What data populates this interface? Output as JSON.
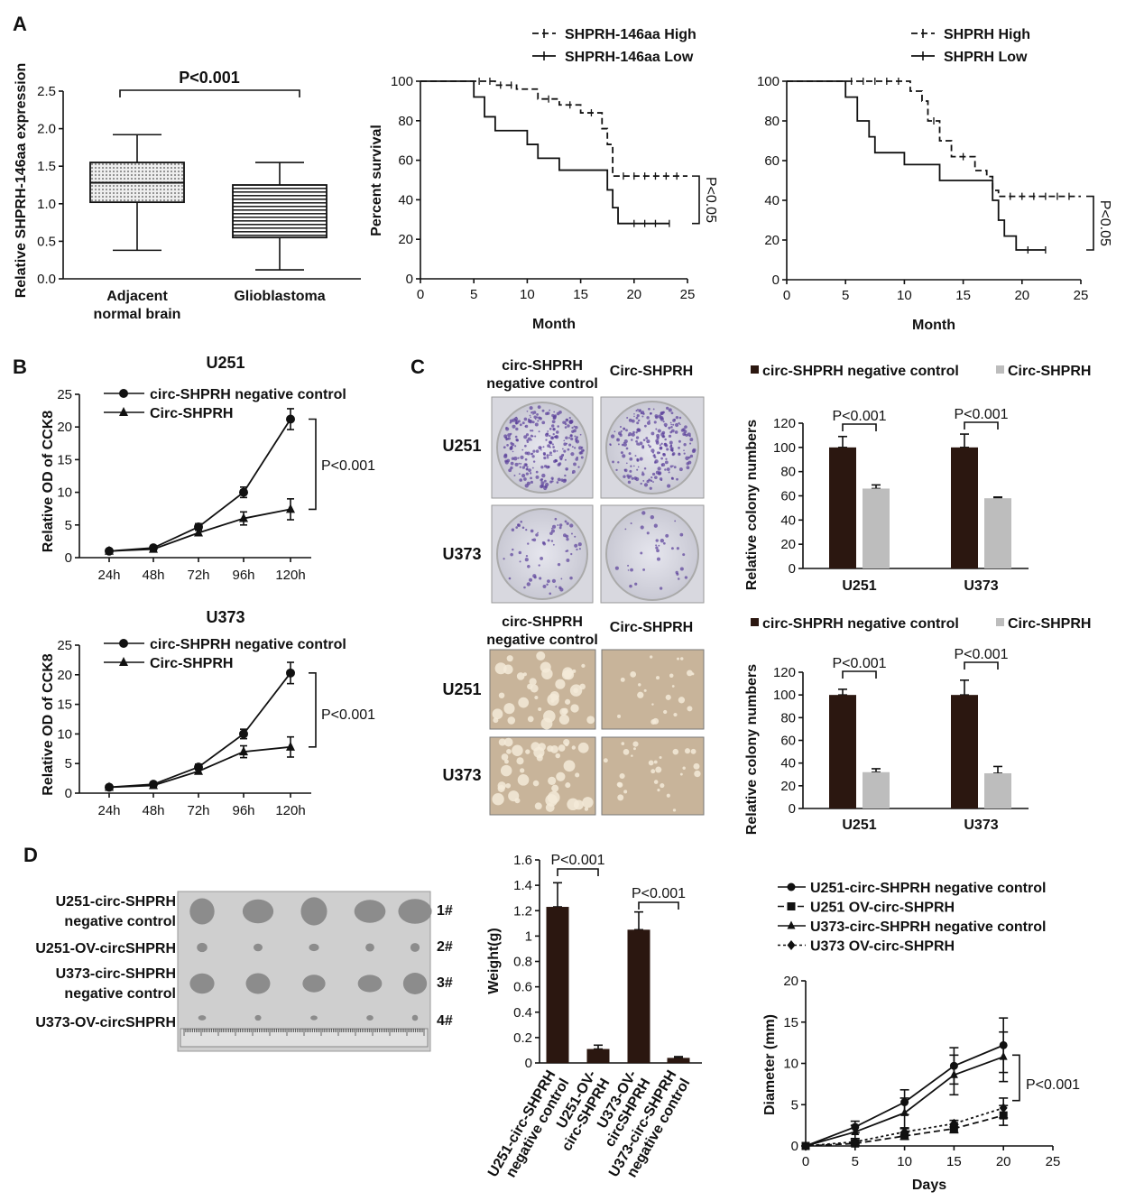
{
  "panels": {
    "A": "A",
    "B": "B",
    "C": "C",
    "D": "D"
  },
  "colors": {
    "dark_bar": "#2b1710",
    "light_bar": "#bdbdbd",
    "line": "#111111",
    "colony_stain": "#5a3f9a",
    "soft_agar": "#c8b49a"
  },
  "chart_data": [
    {
      "id": "box",
      "type": "box",
      "ylabel": "Relative SHPRH-146aa expression",
      "ylim": [
        0,
        2.5
      ],
      "yticks": [
        0,
        0.5,
        1,
        1.5,
        2,
        2.5
      ],
      "ytick_labels": [
        "0.0",
        "0.5",
        "1.0",
        "1.5",
        "2.0",
        "2.5"
      ],
      "categories": [
        [
          "Adjacent",
          "normal brain"
        ],
        [
          "Glioblastoma"
        ]
      ],
      "boxes": [
        {
          "min": 0.38,
          "q1": 1.02,
          "median": 1.28,
          "q3": 1.55,
          "max": 1.92,
          "fill": "dotted"
        },
        {
          "min": 0.12,
          "q1": 0.55,
          "median": 0.9,
          "q3": 1.25,
          "max": 1.55,
          "fill": "striped"
        }
      ],
      "annotation": "P<0.001"
    },
    {
      "id": "km1",
      "type": "line",
      "subtype": "kaplan-meier",
      "xlabel": "Month",
      "ylabel": "Percent survival",
      "xlim": [
        0,
        25
      ],
      "ylim": [
        0,
        100
      ],
      "xticks": [
        0,
        5,
        10,
        15,
        20,
        25
      ],
      "yticks": [
        0,
        20,
        40,
        60,
        80,
        100
      ],
      "series": [
        {
          "name": "SHPRH-146aa High",
          "style": "dashed",
          "points": [
            [
              0,
              100
            ],
            [
              7,
              98
            ],
            [
              9,
              96
            ],
            [
              11,
              91
            ],
            [
              13,
              88
            ],
            [
              15,
              84
            ],
            [
              17,
              76
            ],
            [
              17.5,
              68
            ],
            [
              18,
              52
            ],
            [
              25,
              52
            ]
          ],
          "censored": [
            5.5,
            6.5,
            7.5,
            8.5,
            12,
            14,
            16,
            19,
            20,
            21,
            22,
            23,
            24
          ]
        },
        {
          "name": "SHPRH-146aa Low",
          "style": "solid",
          "points": [
            [
              0,
              100
            ],
            [
              5,
              92
            ],
            [
              6,
              82
            ],
            [
              7,
              75
            ],
            [
              10,
              68
            ],
            [
              11,
              61
            ],
            [
              13,
              55
            ],
            [
              17.5,
              45
            ],
            [
              18,
              36
            ],
            [
              18.5,
              28
            ],
            [
              23.3,
              28
            ]
          ],
          "censored": [
            20,
            21,
            22,
            23.3
          ]
        }
      ],
      "annotation": "P<0.05"
    },
    {
      "id": "km2",
      "type": "line",
      "subtype": "kaplan-meier",
      "xlabel": "Month",
      "ylabel": "",
      "xlim": [
        0,
        25
      ],
      "ylim": [
        0,
        100
      ],
      "xticks": [
        0,
        5,
        10,
        15,
        20,
        25
      ],
      "yticks": [
        0,
        20,
        40,
        60,
        80,
        100
      ],
      "series": [
        {
          "name": "SHPRH High",
          "style": "dashed",
          "points": [
            [
              0,
              100
            ],
            [
              10.5,
              95
            ],
            [
              11.5,
              90
            ],
            [
              12,
              80
            ],
            [
              13,
              70
            ],
            [
              14,
              62
            ],
            [
              16,
              55
            ],
            [
              17,
              52
            ],
            [
              17.5,
              45
            ],
            [
              18,
              42
            ],
            [
              25,
              42
            ]
          ],
          "censored": [
            5.5,
            6.5,
            7.5,
            8.5,
            9.5,
            12.5,
            15,
            19,
            20,
            21,
            22,
            23,
            24
          ]
        },
        {
          "name": "SHPRH Low",
          "style": "solid",
          "points": [
            [
              0,
              100
            ],
            [
              5,
              92
            ],
            [
              6,
              80
            ],
            [
              7,
              72
            ],
            [
              7.5,
              64
            ],
            [
              10,
              58
            ],
            [
              13,
              50
            ],
            [
              17.5,
              40
            ],
            [
              18,
              30
            ],
            [
              18.5,
              22
            ],
            [
              19.5,
              15
            ],
            [
              22,
              15
            ]
          ],
          "censored": [
            20.5,
            22
          ]
        }
      ],
      "annotation": "P<0.05"
    },
    {
      "id": "cck_u251",
      "type": "line",
      "title": "U251",
      "ylabel": "Relative OD of CCK8",
      "categories": [
        "24h",
        "48h",
        "72h",
        "96h",
        "120h"
      ],
      "ylim": [
        0,
        25
      ],
      "yticks": [
        0,
        5,
        10,
        15,
        20,
        25
      ],
      "series": [
        {
          "name": "circ-SHPRH negative control",
          "marker": "circle",
          "values": [
            1,
            1.5,
            4.7,
            10,
            21.2
          ],
          "errors": [
            0.3,
            0.3,
            0.5,
            0.8,
            1.6
          ]
        },
        {
          "name": "Circ-SHPRH",
          "marker": "triangle",
          "values": [
            1,
            1.3,
            3.8,
            6,
            7.4
          ],
          "errors": [
            0.3,
            0.3,
            0.4,
            1.0,
            1.6
          ]
        }
      ],
      "annotation": "P<0.001"
    },
    {
      "id": "cck_u373",
      "type": "line",
      "title": "U373",
      "ylabel": "Relative OD of CCK8",
      "categories": [
        "24h",
        "48h",
        "72h",
        "96h",
        "120h"
      ],
      "ylim": [
        0,
        25
      ],
      "yticks": [
        0,
        5,
        10,
        15,
        20,
        25
      ],
      "series": [
        {
          "name": "circ-SHPRH negative control",
          "marker": "circle",
          "values": [
            1,
            1.5,
            4.4,
            10,
            20.3
          ],
          "errors": [
            0.3,
            0.3,
            0.5,
            0.8,
            1.8
          ]
        },
        {
          "name": "Circ-SHPRH",
          "marker": "triangle",
          "values": [
            1,
            1.3,
            3.7,
            7,
            7.8
          ],
          "errors": [
            0.3,
            0.3,
            0.4,
            1.0,
            1.7
          ]
        }
      ],
      "annotation": "P<0.001"
    },
    {
      "id": "colony_top",
      "type": "bar",
      "ylabel": "Relative colony numbers",
      "categories": [
        "U251",
        "U373"
      ],
      "ylim": [
        0,
        120
      ],
      "yticks": [
        0,
        20,
        40,
        60,
        80,
        100,
        120
      ],
      "series": [
        {
          "name": "circ-SHPRH negative control",
          "color": "#2b1710",
          "values": [
            100,
            100
          ],
          "errors": [
            9,
            11
          ]
        },
        {
          "name": "Circ-SHPRH",
          "color": "#bdbdbd",
          "values": [
            66,
            58
          ],
          "errors": [
            3,
            1
          ]
        }
      ],
      "annotations": [
        "P<0.001",
        "P<0.001"
      ]
    },
    {
      "id": "colony_bottom",
      "type": "bar",
      "ylabel": "Relative colony numbers",
      "categories": [
        "U251",
        "U373"
      ],
      "ylim": [
        0,
        120
      ],
      "yticks": [
        0,
        20,
        40,
        60,
        80,
        100,
        120
      ],
      "series": [
        {
          "name": "circ-SHPRH negative control",
          "color": "#2b1710",
          "values": [
            100,
            100
          ],
          "errors": [
            5,
            13
          ]
        },
        {
          "name": "Circ-SHPRH",
          "color": "#bdbdbd",
          "values": [
            32,
            31
          ],
          "errors": [
            3,
            6
          ]
        }
      ],
      "annotations": [
        "P<0.001",
        "P<0.001"
      ]
    },
    {
      "id": "weight",
      "type": "bar",
      "ylabel": "Weight(g)",
      "categories": [
        [
          "U251-circ-SHPRH",
          "negative control"
        ],
        [
          "U251-OV-",
          "circ-SHPRH"
        ],
        [
          "U373-OV-",
          "circSHPRH"
        ],
        [
          "U373-circ-SHPRH",
          "negative control"
        ]
      ],
      "ylim": [
        0,
        1.6
      ],
      "yticks": [
        0,
        0.2,
        0.4,
        0.6,
        0.8,
        1,
        1.2,
        1.4,
        1.6
      ],
      "values": [
        1.23,
        0.11,
        1.05,
        0.04
      ],
      "errors": [
        0.19,
        0.03,
        0.14,
        0.01
      ],
      "color": "#2b1710",
      "annotations": [
        "P<0.001",
        "P<0.001"
      ]
    },
    {
      "id": "diameter",
      "type": "line",
      "xlabel": "Days",
      "ylabel": "Diameter (mm)",
      "x": [
        0,
        5,
        10,
        15,
        20
      ],
      "xlim": [
        0,
        25
      ],
      "ylim": [
        0,
        20
      ],
      "xticks": [
        0,
        5,
        10,
        15,
        20,
        25
      ],
      "yticks": [
        0,
        5,
        10,
        15,
        20
      ],
      "series": [
        {
          "name": "U251-circ-SHPRH negative control",
          "marker": "circle",
          "style": "solid",
          "values": [
            0,
            2.3,
            5.3,
            9.7,
            12.2
          ],
          "errors": [
            0,
            0.7,
            1.5,
            2.2,
            3.3
          ]
        },
        {
          "name": "U251 OV-circ-SHPRH",
          "marker": "square",
          "style": "dashed",
          "values": [
            0,
            0.3,
            1.2,
            2.1,
            3.7
          ],
          "errors": [
            0,
            0.2,
            0.4,
            0.5,
            1.2
          ]
        },
        {
          "name": "U373-circ-SHPRH negative control",
          "marker": "triangle",
          "style": "solid",
          "values": [
            0,
            1.7,
            4,
            8.6,
            10.8
          ],
          "errors": [
            0,
            0.8,
            1.8,
            2.4,
            3
          ]
        },
        {
          "name": "U373 OV-circ-SHPRH",
          "marker": "diamond",
          "style": "dotted",
          "values": [
            0,
            0.5,
            1.7,
            2.7,
            4.6
          ],
          "errors": [
            0,
            0.2,
            0.4,
            0.4,
            1.2
          ]
        }
      ],
      "annotation": "P<0.001"
    }
  ],
  "images": {
    "colony_top": {
      "columns": [
        [
          "circ-SHPRH",
          "negative control"
        ],
        [
          "Circ-SHPRH"
        ]
      ],
      "rows": [
        "U251",
        "U373"
      ]
    },
    "colony_bottom": {
      "columns": [
        [
          "circ-SHPRH",
          "negative control"
        ],
        [
          "Circ-SHPRH"
        ]
      ],
      "rows": [
        "U251",
        "U373"
      ]
    },
    "tumors": {
      "rows": [
        [
          "U251-circ-SHPRH",
          "negative control"
        ],
        [
          "U251-OV-circSHPRH"
        ],
        [
          "U373-circ-SHPRH",
          "negative control"
        ],
        [
          "U373-OV-circSHPRH"
        ]
      ],
      "row_ids": [
        "1#",
        "2#",
        "3#",
        "4#"
      ]
    }
  }
}
